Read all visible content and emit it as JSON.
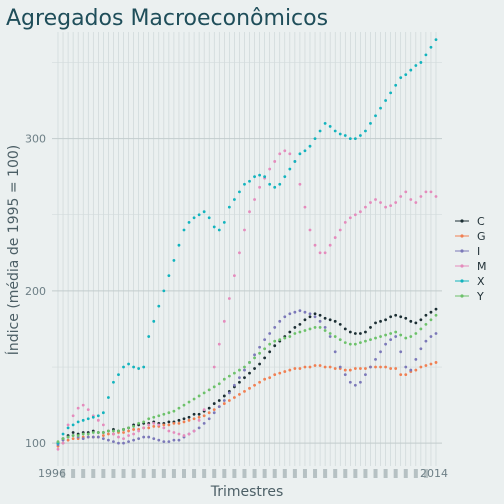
{
  "chart_data": {
    "type": "scatter",
    "title": "Agregados Macroeconômicos",
    "xlabel": "Trimestres",
    "ylabel": "Índice (média de 1995 = 100)",
    "x_tick_label_pattern": "1996 … 2014 (overlapping quarterly tick labels)",
    "x_tick_labels": [
      "1996",
      "2014"
    ],
    "y_ticks": [
      100,
      200,
      300
    ],
    "ylim": [
      85,
      370
    ],
    "x": [
      "1996Q1",
      "1996Q2",
      "1996Q3",
      "1996Q4",
      "1997Q1",
      "1997Q2",
      "1997Q3",
      "1997Q4",
      "1998Q1",
      "1998Q2",
      "1998Q3",
      "1998Q4",
      "1999Q1",
      "1999Q2",
      "1999Q3",
      "1999Q4",
      "2000Q1",
      "2000Q2",
      "2000Q3",
      "2000Q4",
      "2001Q1",
      "2001Q2",
      "2001Q3",
      "2001Q4",
      "2002Q1",
      "2002Q2",
      "2002Q3",
      "2002Q4",
      "2003Q1",
      "2003Q2",
      "2003Q3",
      "2003Q4",
      "2004Q1",
      "2004Q2",
      "2004Q3",
      "2004Q4",
      "2005Q1",
      "2005Q2",
      "2005Q3",
      "2005Q4",
      "2006Q1",
      "2006Q2",
      "2006Q3",
      "2006Q4",
      "2007Q1",
      "2007Q2",
      "2007Q3",
      "2007Q4",
      "2008Q1",
      "2008Q2",
      "2008Q3",
      "2008Q4",
      "2009Q1",
      "2009Q2",
      "2009Q3",
      "2009Q4",
      "2010Q1",
      "2010Q2",
      "2010Q3",
      "2010Q4",
      "2011Q1",
      "2011Q2",
      "2011Q3",
      "2011Q4",
      "2012Q1",
      "2012Q2",
      "2012Q3",
      "2012Q4",
      "2013Q1",
      "2013Q2",
      "2013Q3",
      "2013Q4",
      "2014Q1",
      "2014Q2",
      "2014Q3",
      "2014Q4"
    ],
    "grid": true,
    "legend_position": "right",
    "series": [
      {
        "name": "C",
        "color": "#1b2e33",
        "values": [
          100,
          103,
          105,
          107,
          106,
          107,
          107,
          108,
          107,
          107,
          108,
          109,
          108,
          109,
          110,
          112,
          112,
          113,
          113,
          114,
          113,
          113,
          114,
          114,
          115,
          116,
          117,
          119,
          119,
          121,
          123,
          126,
          128,
          131,
          134,
          137,
          140,
          143,
          146,
          149,
          152,
          156,
          160,
          164,
          167,
          170,
          173,
          176,
          178,
          181,
          183,
          185,
          184,
          182,
          181,
          180,
          178,
          175,
          173,
          172,
          172,
          173,
          176,
          179,
          180,
          181,
          183,
          184,
          183,
          182,
          180,
          179,
          181,
          184,
          186,
          188
        ]
      },
      {
        "name": "G",
        "color": "#f07f52",
        "values": [
          98,
          100,
          102,
          103,
          103,
          104,
          104,
          104,
          104,
          105,
          106,
          106,
          107,
          107,
          108,
          109,
          109,
          110,
          110,
          111,
          111,
          112,
          112,
          113,
          113,
          114,
          115,
          116,
          117,
          118,
          120,
          122,
          124,
          126,
          128,
          130,
          132,
          134,
          136,
          138,
          140,
          142,
          143,
          145,
          146,
          147,
          148,
          149,
          149,
          150,
          150,
          151,
          151,
          150,
          150,
          149,
          149,
          148,
          148,
          149,
          149,
          149,
          150,
          150,
          150,
          150,
          149,
          149,
          145,
          145,
          147,
          148,
          150,
          151,
          152,
          153
        ]
      },
      {
        "name": "I",
        "color": "#7b78b8",
        "values": [
          99,
          102,
          104,
          105,
          104,
          103,
          104,
          104,
          104,
          103,
          102,
          101,
          100,
          100,
          101,
          102,
          103,
          104,
          104,
          103,
          102,
          101,
          101,
          102,
          102,
          104,
          106,
          108,
          110,
          113,
          116,
          120,
          124,
          128,
          133,
          138,
          143,
          148,
          153,
          158,
          163,
          168,
          172,
          176,
          180,
          183,
          185,
          186,
          187,
          186,
          185,
          183,
          180,
          176,
          170,
          160,
          150,
          145,
          140,
          138,
          140,
          145,
          150,
          155,
          160,
          165,
          168,
          170,
          160,
          150,
          148,
          155,
          162,
          167,
          170,
          172
        ]
      },
      {
        "name": "M",
        "color": "#e48bbc",
        "values": [
          96,
          100,
          112,
          118,
          123,
          125,
          122,
          118,
          115,
          112,
          108,
          106,
          104,
          103,
          105,
          106,
          108,
          110,
          112,
          113,
          112,
          110,
          108,
          107,
          106,
          105,
          106,
          108,
          115,
          122,
          135,
          150,
          165,
          180,
          195,
          210,
          225,
          240,
          252,
          260,
          268,
          274,
          280,
          285,
          290,
          292,
          290,
          285,
          270,
          255,
          240,
          230,
          225,
          225,
          230,
          235,
          240,
          245,
          248,
          250,
          252,
          255,
          258,
          260,
          258,
          255,
          256,
          258,
          262,
          265,
          260,
          258,
          262,
          265,
          265,
          262
        ]
      },
      {
        "name": "X",
        "color": "#12b3bd",
        "values": [
          100,
          106,
          110,
          112,
          114,
          115,
          116,
          117,
          118,
          120,
          130,
          140,
          145,
          150,
          152,
          150,
          149,
          150,
          170,
          180,
          190,
          200,
          210,
          220,
          230,
          240,
          245,
          248,
          250,
          252,
          248,
          242,
          240,
          245,
          255,
          260,
          265,
          270,
          272,
          275,
          276,
          275,
          270,
          268,
          270,
          275,
          280,
          285,
          290,
          292,
          295,
          300,
          305,
          310,
          308,
          305,
          303,
          302,
          300,
          300,
          302,
          305,
          310,
          315,
          320,
          325,
          330,
          335,
          340,
          342,
          345,
          348,
          350,
          355,
          360,
          365
        ]
      },
      {
        "name": "Y",
        "color": "#6cc16a",
        "values": [
          101,
          103,
          104,
          105,
          105,
          106,
          106,
          107,
          107,
          107,
          108,
          108,
          108,
          109,
          110,
          111,
          113,
          114,
          116,
          117,
          118,
          119,
          120,
          121,
          123,
          125,
          127,
          129,
          131,
          133,
          135,
          137,
          139,
          142,
          144,
          146,
          148,
          150,
          153,
          156,
          159,
          162,
          165,
          167,
          168,
          169,
          170,
          172,
          173,
          174,
          175,
          176,
          176,
          174,
          172,
          170,
          168,
          166,
          165,
          165,
          166,
          167,
          168,
          169,
          170,
          171,
          172,
          173,
          171,
          169,
          170,
          172,
          175,
          178,
          181,
          184
        ]
      }
    ]
  }
}
